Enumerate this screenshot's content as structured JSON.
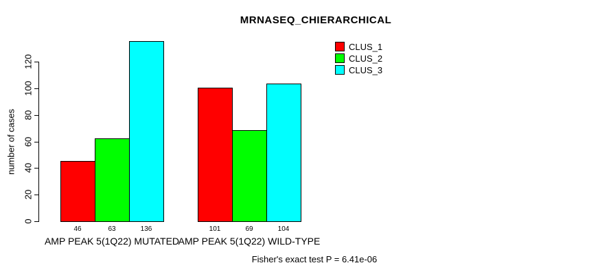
{
  "chart_data": {
    "type": "bar",
    "title": "MRNASEQ_CHIERARCHICAL",
    "ylabel": "number of cases",
    "xlabel": "",
    "footnote": "Fisher's exact test P = 6.41e-06",
    "categories": [
      "AMP PEAK 5(1Q22) MUTATED",
      "AMP PEAK 5(1Q22) WILD-TYPE"
    ],
    "series": [
      {
        "name": "CLUS_1",
        "color": "#FF0000",
        "values": [
          46,
          101
        ]
      },
      {
        "name": "CLUS_2",
        "color": "#00FF00",
        "values": [
          63,
          69
        ]
      },
      {
        "name": "CLUS_3",
        "color": "#00FFFF",
        "values": [
          136,
          104
        ]
      }
    ],
    "yticks": [
      0,
      20,
      40,
      60,
      80,
      100,
      120
    ],
    "ylim": [
      0,
      120
    ],
    "grid": false,
    "legend_position": "top-right",
    "bar_borders": "#000000",
    "background": "#FFFFFF"
  }
}
